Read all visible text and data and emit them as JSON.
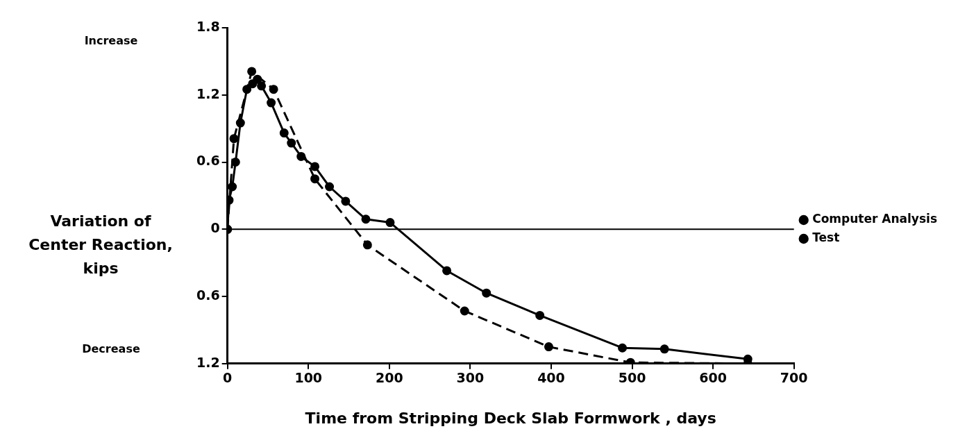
{
  "chart_data": {
    "type": "line",
    "xlabel": "Time from Stripping Deck Slab Formwork , days",
    "ylabel": "Variation of Center Reaction, kips",
    "annotations": [
      "Increase",
      "Decrease"
    ],
    "xlim": [
      0,
      700
    ],
    "xticks": [
      0,
      100,
      200,
      300,
      400,
      500,
      600,
      700
    ],
    "ylim": [
      -1.2,
      1.8
    ],
    "yticks": [
      {
        "value": -1.2,
        "label": "1.2"
      },
      {
        "value": -0.6,
        "label": "0.6"
      },
      0,
      0.6,
      1.2,
      1.8
    ],
    "ref_lines": [
      {
        "axis": "y",
        "value": 0,
        "color": "#000000"
      }
    ],
    "grid": false,
    "legend": "right",
    "marker": "circle",
    "series": [
      {
        "name": "Computer Analysis",
        "color": "#000000",
        "line_style": "dashed",
        "x": [
          0,
          8,
          30,
          57,
          108,
          173,
          293,
          397,
          498,
          643
        ],
        "values": [
          0,
          0.81,
          1.41,
          1.25,
          0.45,
          -0.14,
          -0.73,
          -1.05,
          -1.19,
          -1.2
        ]
      },
      {
        "name": "Test",
        "color": "#000000",
        "line_style": "solid",
        "x": [
          0,
          2,
          6,
          10,
          16,
          24,
          31,
          37,
          42,
          54,
          70,
          79,
          91,
          108,
          126,
          146,
          171,
          201,
          271,
          320,
          386,
          488,
          540,
          643
        ],
        "values": [
          0,
          0.26,
          0.38,
          0.6,
          0.95,
          1.25,
          1.3,
          1.34,
          1.28,
          1.13,
          0.86,
          0.77,
          0.65,
          0.56,
          0.38,
          0.25,
          0.09,
          0.06,
          -0.37,
          -0.57,
          -0.77,
          -1.06,
          -1.07,
          -1.16
        ]
      }
    ]
  }
}
